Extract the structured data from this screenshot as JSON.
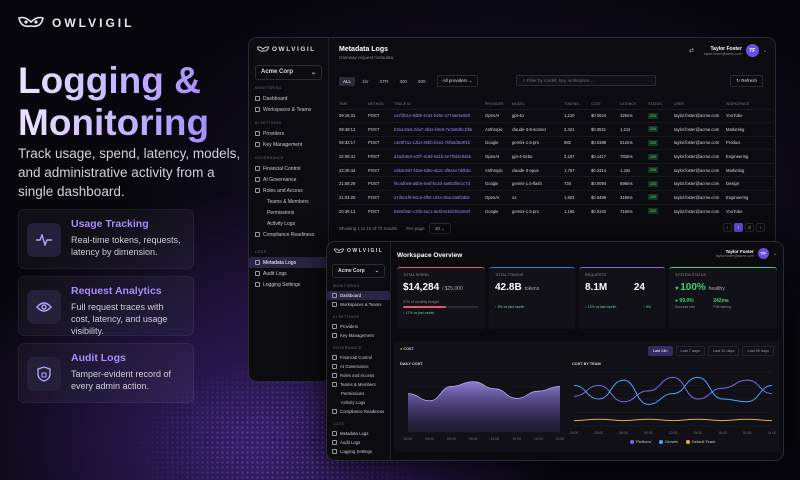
{
  "brand": {
    "name": "OWLVIGIL"
  },
  "hero": {
    "title": "Logging & Monitoring",
    "lede": "Track usage, spend, latency, models, and administrative activity from a single dashboard."
  },
  "features": [
    {
      "title": "Usage Tracking",
      "desc": "Real-time tokens, requests, latency by dimension.",
      "icon": "pulse-icon"
    },
    {
      "title": "Request Analytics",
      "desc": "Full request traces with cost, latency, and usage visibility.",
      "icon": "eye-icon"
    },
    {
      "title": "Audit Logs",
      "desc": "Tamper-evident record of every admin action.",
      "icon": "lock-icon"
    }
  ],
  "app": {
    "org": "Acme Corp",
    "user": {
      "name": "Taylor Foster",
      "email": "taylor.foster@acme.com",
      "initials": "TF"
    },
    "sidebar": {
      "monitoring": "Monitoring",
      "dashboard": "Dashboard",
      "workspaces": "Workspaces & Teams",
      "ai_settings": "AI Settings",
      "providers": "Providers",
      "keys": "Key Management",
      "governance": "Governance",
      "financial": "Financial Control",
      "ai_gov": "AI Governance",
      "roles": "Roles and Access",
      "teams": "Teams & Members",
      "permissions": "Permissions",
      "activity": "Activity Logs",
      "compliance": "Compliance Readiness",
      "logs_sec": "Logs",
      "metadata": "Metadata Logs",
      "audit": "Audit Logs",
      "logging": "Logging Settings"
    }
  },
  "logs_page": {
    "title": "Metadata Logs",
    "subtitle": "Gateway request metadata.",
    "filters": [
      "ALL",
      "1hr",
      "STR",
      "300",
      "900"
    ],
    "provider_select": "All providers",
    "search_placeholder": "Filter by model, key, workspace...",
    "refresh": "Refresh",
    "columns": [
      "Time",
      "Method",
      "Trace ID",
      "Provider",
      "Model",
      "Tokens",
      "Cost",
      "Latency",
      "Status",
      "User",
      "Workspace"
    ],
    "rows": [
      [
        "09:16:31",
        "POST",
        "ca7f3b1e-9d85-4c34-bd9e-477a6e5e8b0",
        "OpenAI",
        "gpt-4o",
        "1,210",
        "$0.0624",
        "425ms",
        "200",
        "taylor.foster@acme.com",
        "YouTube"
      ],
      [
        "08:48:12",
        "POST",
        "b3a1c8e5-2da7-4b2e-b9c8-7e3a0d6c1f5b",
        "Anthropic",
        "claude-3-5-sonnet",
        "2,421",
        "$0.0821",
        "1.21s",
        "200",
        "taylor.foster@acme.com",
        "Marketing"
      ],
      [
        "08:32:17",
        "POST",
        "c3e9f7a1-12b4-49bb-b2e2-7bfa0d5c9f1b",
        "Google",
        "gemini-1.5-pro",
        "982",
        "$0.0386",
        "512ms",
        "200",
        "taylor.foster@acme.com",
        "Product"
      ],
      [
        "22:08:41",
        "POST",
        "d4a2b8c6-e3f7-4c8d-9a1b-2e7f0d6c9a5b",
        "OpenAI",
        "gpt-4-turbo",
        "3,187",
        "$0.1417",
        "783ms",
        "200",
        "taylor.foster@acme.com",
        "Engineering"
      ],
      [
        "22:25:44",
        "POST",
        "e5b3c9d7-f4a8-4d9e-ab2c-3f8a1e7d0b6c",
        "Anthropic",
        "claude-3-opus",
        "1,767",
        "$0.2314",
        "1.42s",
        "200",
        "taylor.foster@acme.com",
        "Marketing"
      ],
      [
        "21:58:29",
        "POST",
        "f6c4d0e8-a5b9-4eaf-bc3d-4a9b2f8e1c7d",
        "Google",
        "gemini-1.5-flash",
        "734",
        "$0.0094",
        "698ms",
        "200",
        "taylor.foster@acme.com",
        "Design"
      ],
      [
        "21:03:25",
        "POST",
        "a7d5e1f9-b6ca-4fb0-cd4e-5bac3a9f2d8e",
        "OpenAI",
        "o1",
        "1,503",
        "$0.0486",
        "318ms",
        "200",
        "taylor.foster@acme.com",
        "Engineering"
      ],
      [
        "20:36:13",
        "POST",
        "b8e6f2a0-c7db-4ac1-de5f-6cbd4b0a3e9f",
        "Google",
        "gemini-1.5-pro",
        "1,165",
        "$0.0342",
        "718ms",
        "200",
        "taylor.foster@acme.com",
        "YouTube"
      ]
    ],
    "pagination": {
      "showing": "Showing 1 to 10 of 72 results",
      "per_page_label": "Per page",
      "per_page": "10",
      "pages": [
        "1",
        "2"
      ]
    }
  },
  "overview": {
    "title": "Workspace Overview",
    "total_spend": {
      "label": "Total Spend",
      "value": "$14,284",
      "budget": "/ $25,000",
      "note": "57% of monthly budget",
      "delta": "↑ 17% vs last month",
      "progress": 0.57,
      "accent": "#e05a6b"
    },
    "total_tokens": {
      "label": "Total Tokens",
      "value": "42.8B",
      "unit": "tokens",
      "delta": "↑ 8% vs last month",
      "accent": "#3d7be0"
    },
    "requests": {
      "label": "Requests",
      "value": "8.1M",
      "value2": "24",
      "delta": "↑ 12% vs last month",
      "delta2": "↑ 5%",
      "accent": "#8f6ae6"
    },
    "status": {
      "label": "System Status",
      "value": "100%",
      "word": "healthy",
      "success": "99.9%",
      "success_label": "Success rate",
      "latency": "242ms",
      "latency_label": "P95 latency",
      "accent": "#3ed07a"
    },
    "cost": {
      "label": "Cost",
      "tabs": [
        "Last 24h",
        "Last 7 days",
        "Last 30 days",
        "Last 90 days"
      ],
      "daily": "Daily Cost",
      "team": "Cost by Team",
      "legend": [
        {
          "name": "Platform",
          "color": "#7b68ee"
        },
        {
          "name": "Growth",
          "color": "#4aa3ff"
        },
        {
          "name": "Default Team",
          "color": "#f0a93a"
        }
      ]
    }
  },
  "chart_data": [
    {
      "type": "area",
      "title": "DAILY COST",
      "x": [
        "00:00",
        "03:00",
        "06:00",
        "09:00",
        "12:00",
        "15:00",
        "18:00",
        "21:00"
      ],
      "series": [
        {
          "values": [
            32,
            26,
            38,
            42,
            36,
            28,
            34,
            38
          ]
        }
      ]
    },
    {
      "type": "line",
      "title": "COST BY TEAM",
      "x": [
        "00:00",
        "03:00",
        "06:00",
        "09:00",
        "12:00",
        "15:00",
        "18:00",
        "21:00",
        "24:00"
      ],
      "series": [
        {
          "name": "Platform",
          "values": [
            22,
            30,
            18,
            26,
            36,
            20,
            28,
            34,
            24
          ]
        },
        {
          "name": "Growth",
          "values": [
            30,
            20,
            34,
            16,
            24,
            36,
            20,
            18,
            30
          ]
        },
        {
          "name": "Default Team",
          "values": [
            4,
            5,
            4,
            5,
            4,
            5,
            4,
            5,
            4
          ]
        }
      ]
    }
  ]
}
